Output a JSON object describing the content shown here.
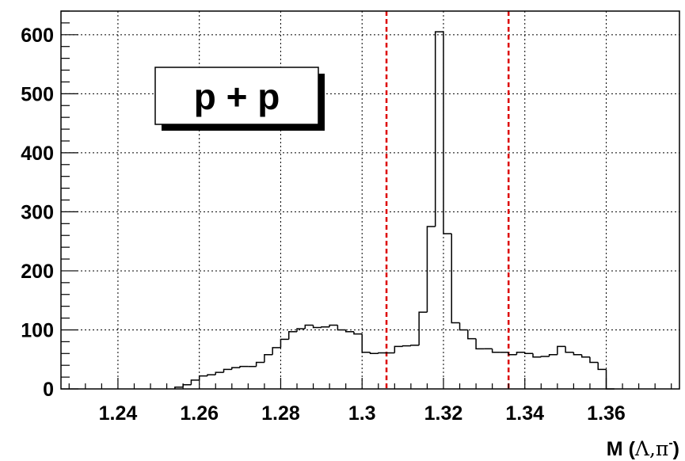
{
  "chart_data": {
    "type": "histogram",
    "title": "",
    "xlabel_main": "M (",
    "xlabel_symbols": "Λ,π",
    "xlabel_sup": "-",
    "xlabel_close": ")",
    "ylabel": "",
    "xlim": [
      1.226,
      1.378
    ],
    "ylim": [
      0,
      640
    ],
    "grid": true,
    "legend_text": "p + p",
    "legend_position": "top-left",
    "x_ticks": [
      1.24,
      1.26,
      1.28,
      1.3,
      1.32,
      1.34,
      1.36
    ],
    "x_tick_labels": [
      "1.24",
      "1.26",
      "1.28",
      "1.3",
      "1.32",
      "1.34",
      "1.36"
    ],
    "y_ticks": [
      0,
      100,
      200,
      300,
      400,
      500,
      600
    ],
    "y_tick_labels": [
      "0",
      "100",
      "200",
      "300",
      "400",
      "500",
      "600"
    ],
    "bin_edges": [
      1.254,
      1.256,
      1.258,
      1.26,
      1.262,
      1.264,
      1.266,
      1.268,
      1.27,
      1.272,
      1.274,
      1.276,
      1.278,
      1.28,
      1.282,
      1.284,
      1.286,
      1.288,
      1.29,
      1.292,
      1.294,
      1.296,
      1.298,
      1.3,
      1.302,
      1.304,
      1.306,
      1.308,
      1.31,
      1.312,
      1.314,
      1.316,
      1.318,
      1.32,
      1.322,
      1.324,
      1.326,
      1.328,
      1.33,
      1.332,
      1.334,
      1.336,
      1.338,
      1.34,
      1.342,
      1.344,
      1.346,
      1.348,
      1.35,
      1.352,
      1.354,
      1.356,
      1.358,
      1.36,
      1.362
    ],
    "counts": [
      3,
      7,
      15,
      22,
      24,
      28,
      33,
      36,
      38,
      38,
      45,
      58,
      70,
      84,
      97,
      102,
      108,
      104,
      105,
      108,
      100,
      97,
      93,
      62,
      60,
      61,
      61,
      72,
      73,
      74,
      130,
      275,
      605,
      263,
      112,
      100,
      85,
      68,
      68,
      62,
      62,
      58,
      62,
      60,
      54,
      55,
      58,
      72,
      62,
      58,
      54,
      45,
      33,
      0
    ],
    "reference_lines": [
      1.306,
      1.336
    ],
    "reference_line_color": "#dd0000",
    "line_color": "#000000"
  }
}
